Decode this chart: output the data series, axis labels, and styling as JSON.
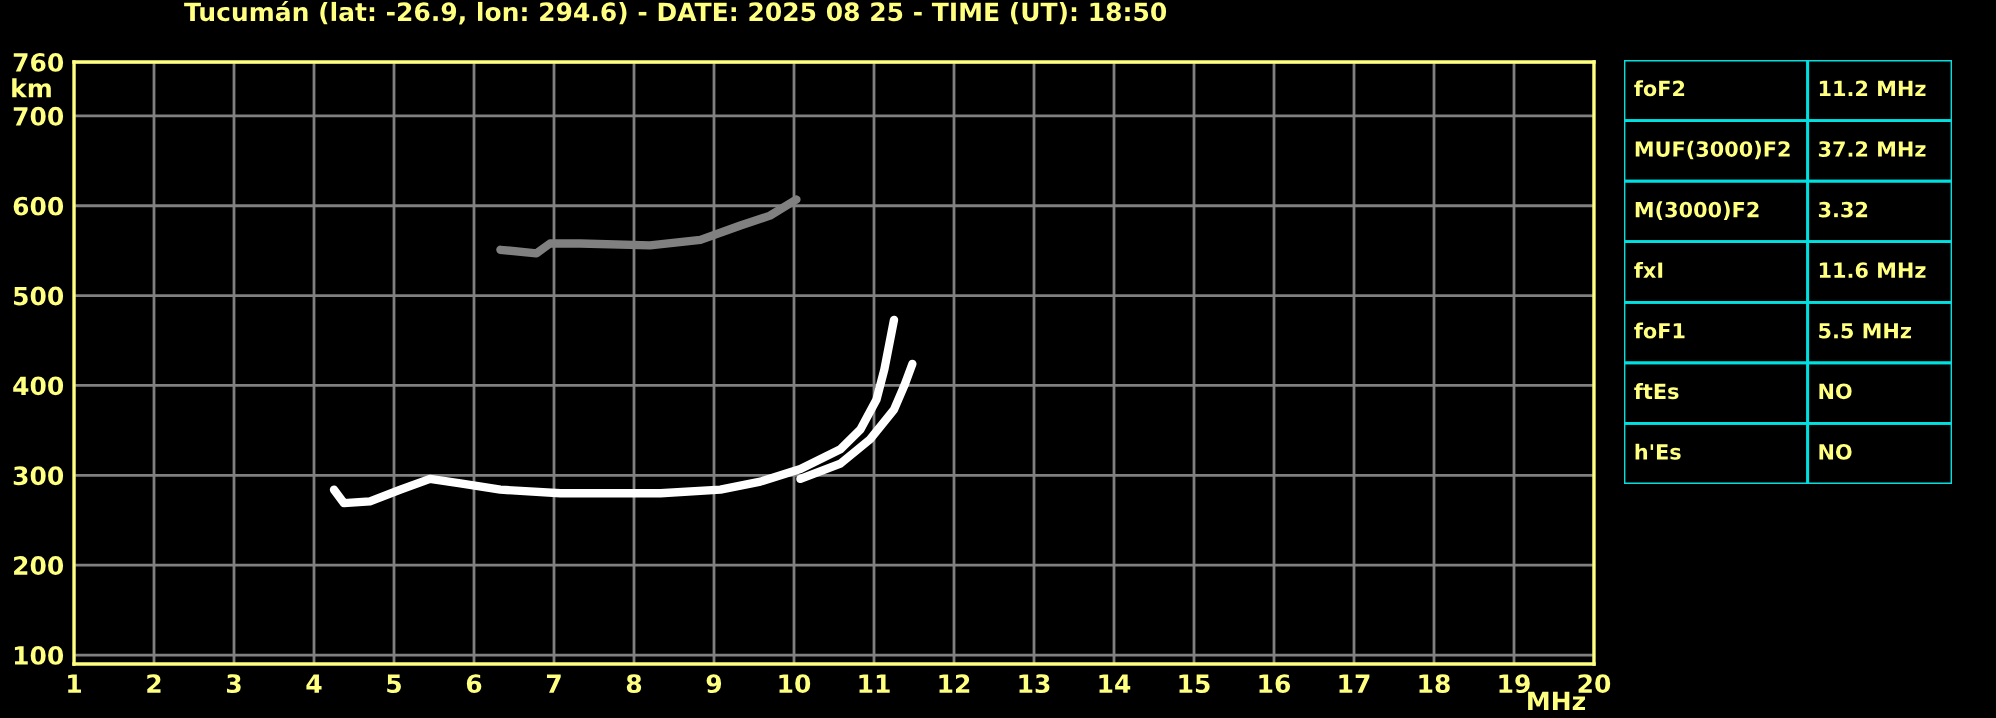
{
  "chart_data": [
    {
      "type": "line",
      "title": "Tucumán (lat: -26.9, lon: 294.6) - DATE: 2025 08 25 - TIME (UT): 18:50",
      "xlabel": "MHz",
      "ylabel": "km",
      "xlim": [
        1,
        20
      ],
      "ylim": [
        90,
        760
      ],
      "xticks": [
        1,
        2,
        3,
        4,
        5,
        6,
        7,
        8,
        9,
        10,
        11,
        12,
        13,
        14,
        15,
        16,
        17,
        18,
        19,
        20
      ],
      "yticks": [
        100,
        200,
        300,
        400,
        500,
        600,
        700,
        760
      ],
      "grid": true,
      "legend": false,
      "marker": "none",
      "line_style": "solid",
      "series": [
        {
          "color": "#ffffff",
          "x": [
            4.25,
            4.375,
            4.7,
            5.08,
            5.45,
            5.83,
            6.33,
            7.08,
            8.33,
            9.08,
            9.58,
            10.08,
            10.58,
            10.83,
            11.03,
            11.13,
            11.25
          ],
          "values": [
            284,
            269,
            271,
            284,
            296,
            291,
            284,
            280,
            280,
            284,
            293,
            307,
            329,
            351,
            384,
            418,
            473
          ]
        },
        {
          "color": "#ffffff",
          "x": [
            10.08,
            10.58,
            10.95,
            11.25,
            11.38,
            11.48
          ],
          "values": [
            296,
            313,
            340,
            373,
            400,
            424
          ]
        },
        {
          "color": "#808080",
          "x": [
            6.33,
            6.78,
            6.95,
            7.33,
            8.2,
            8.83,
            9.33,
            9.7,
            10.03
          ],
          "values": [
            551,
            547,
            558,
            558,
            556,
            562,
            578,
            589,
            607
          ]
        }
      ]
    },
    {
      "type": "other",
      "annotations": [
        "foF2",
        "11.2 MHz",
        "MUF(3000)F2",
        "37.2 MHz",
        "M(3000)F2",
        "3.32",
        "fxI",
        "11.6 MHz",
        "foF1",
        "5.5 MHz",
        "ftEs",
        "NO",
        "h'Es",
        "NO"
      ]
    }
  ]
}
